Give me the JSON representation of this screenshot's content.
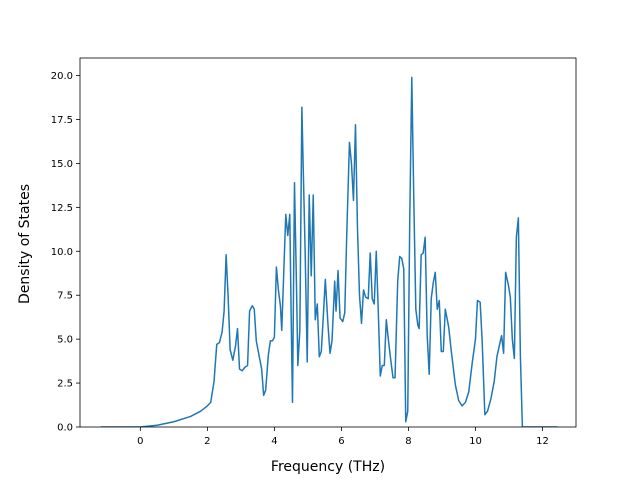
{
  "chart_data": {
    "type": "line",
    "xlabel": "Frequency (THz)",
    "ylabel": "Density of States",
    "xlim": [
      -1.8,
      13.0
    ],
    "ylim": [
      0,
      21.0
    ],
    "xticks": [
      0,
      2,
      4,
      6,
      8,
      10,
      12
    ],
    "xtick_labels": [
      "0",
      "2",
      "4",
      "6",
      "8",
      "10",
      "12"
    ],
    "yticks": [
      0,
      2.5,
      5,
      7.5,
      10,
      12.5,
      15,
      17.5,
      20
    ],
    "ytick_labels": [
      "0.0",
      "2.5",
      "5.0",
      "7.5",
      "10.0",
      "12.5",
      "15.0",
      "17.5",
      "20.0"
    ],
    "grid": false,
    "legend": false,
    "series": [
      {
        "color": "#1f77b4",
        "points": [
          [
            -1.18,
            0.0
          ],
          [
            0.0,
            0.0
          ],
          [
            0.5,
            0.1
          ],
          [
            1.0,
            0.3
          ],
          [
            1.5,
            0.6
          ],
          [
            1.8,
            0.9
          ],
          [
            2.0,
            1.2
          ],
          [
            2.1,
            1.4
          ],
          [
            2.2,
            2.6
          ],
          [
            2.28,
            4.7
          ],
          [
            2.36,
            4.8
          ],
          [
            2.44,
            5.4
          ],
          [
            2.5,
            6.6
          ],
          [
            2.56,
            9.8
          ],
          [
            2.62,
            7.4
          ],
          [
            2.68,
            4.4
          ],
          [
            2.76,
            3.8
          ],
          [
            2.84,
            4.6
          ],
          [
            2.9,
            5.6
          ],
          [
            2.96,
            3.3
          ],
          [
            3.04,
            3.2
          ],
          [
            3.12,
            3.4
          ],
          [
            3.2,
            3.5
          ],
          [
            3.26,
            6.6
          ],
          [
            3.34,
            6.9
          ],
          [
            3.4,
            6.7
          ],
          [
            3.46,
            4.9
          ],
          [
            3.54,
            4.1
          ],
          [
            3.62,
            3.3
          ],
          [
            3.68,
            1.8
          ],
          [
            3.74,
            2.1
          ],
          [
            3.82,
            4.1
          ],
          [
            3.88,
            4.9
          ],
          [
            3.94,
            4.9
          ],
          [
            4.0,
            5.1
          ],
          [
            4.06,
            9.1
          ],
          [
            4.12,
            7.8
          ],
          [
            4.18,
            6.9
          ],
          [
            4.22,
            5.5
          ],
          [
            4.28,
            8.8
          ],
          [
            4.34,
            12.1
          ],
          [
            4.4,
            10.9
          ],
          [
            4.46,
            12.1
          ],
          [
            4.5,
            6.4
          ],
          [
            4.54,
            1.4
          ],
          [
            4.6,
            13.9
          ],
          [
            4.66,
            8.0
          ],
          [
            4.7,
            3.5
          ],
          [
            4.76,
            5.5
          ],
          [
            4.82,
            18.2
          ],
          [
            4.86,
            14.8
          ],
          [
            4.92,
            9.8
          ],
          [
            4.98,
            3.7
          ],
          [
            5.04,
            13.2
          ],
          [
            5.1,
            8.6
          ],
          [
            5.16,
            13.2
          ],
          [
            5.22,
            6.1
          ],
          [
            5.28,
            7.0
          ],
          [
            5.34,
            4.0
          ],
          [
            5.4,
            4.3
          ],
          [
            5.46,
            6.3
          ],
          [
            5.52,
            8.4
          ],
          [
            5.6,
            5.8
          ],
          [
            5.66,
            4.2
          ],
          [
            5.72,
            4.9
          ],
          [
            5.8,
            8.3
          ],
          [
            5.84,
            6.6
          ],
          [
            5.9,
            8.9
          ],
          [
            5.96,
            6.2
          ],
          [
            6.04,
            6.0
          ],
          [
            6.1,
            6.5
          ],
          [
            6.16,
            11.0
          ],
          [
            6.24,
            16.2
          ],
          [
            6.3,
            15.0
          ],
          [
            6.36,
            12.9
          ],
          [
            6.42,
            17.2
          ],
          [
            6.48,
            11.3
          ],
          [
            6.54,
            7.5
          ],
          [
            6.6,
            5.9
          ],
          [
            6.66,
            7.8
          ],
          [
            6.72,
            7.4
          ],
          [
            6.8,
            7.3
          ],
          [
            6.86,
            9.9
          ],
          [
            6.92,
            7.3
          ],
          [
            6.98,
            7.0
          ],
          [
            7.04,
            10.0
          ],
          [
            7.1,
            6.6
          ],
          [
            7.16,
            2.9
          ],
          [
            7.22,
            3.5
          ],
          [
            7.28,
            3.5
          ],
          [
            7.34,
            6.1
          ],
          [
            7.4,
            5.0
          ],
          [
            7.46,
            4.0
          ],
          [
            7.54,
            2.8
          ],
          [
            7.6,
            2.8
          ],
          [
            7.68,
            8.3
          ],
          [
            7.74,
            9.7
          ],
          [
            7.8,
            9.6
          ],
          [
            7.86,
            9.0
          ],
          [
            7.92,
            0.3
          ],
          [
            7.98,
            0.9
          ],
          [
            8.04,
            11.9
          ],
          [
            8.1,
            19.9
          ],
          [
            8.16,
            13.0
          ],
          [
            8.22,
            6.7
          ],
          [
            8.28,
            5.8
          ],
          [
            8.32,
            5.6
          ],
          [
            8.38,
            9.8
          ],
          [
            8.44,
            9.9
          ],
          [
            8.5,
            10.8
          ],
          [
            8.56,
            5.2
          ],
          [
            8.62,
            3.0
          ],
          [
            8.68,
            7.3
          ],
          [
            8.74,
            8.2
          ],
          [
            8.8,
            8.8
          ],
          [
            8.86,
            6.7
          ],
          [
            8.92,
            7.2
          ],
          [
            8.98,
            4.3
          ],
          [
            9.04,
            4.3
          ],
          [
            9.1,
            6.7
          ],
          [
            9.2,
            5.7
          ],
          [
            9.28,
            4.3
          ],
          [
            9.4,
            2.4
          ],
          [
            9.5,
            1.5
          ],
          [
            9.6,
            1.2
          ],
          [
            9.7,
            1.4
          ],
          [
            9.8,
            2.0
          ],
          [
            9.9,
            3.6
          ],
          [
            10.0,
            5.0
          ],
          [
            10.06,
            7.2
          ],
          [
            10.14,
            7.1
          ],
          [
            10.2,
            4.9
          ],
          [
            10.28,
            0.7
          ],
          [
            10.36,
            0.9
          ],
          [
            10.46,
            1.6
          ],
          [
            10.56,
            2.6
          ],
          [
            10.64,
            4.0
          ],
          [
            10.72,
            4.7
          ],
          [
            10.78,
            5.2
          ],
          [
            10.84,
            4.2
          ],
          [
            10.9,
            8.8
          ],
          [
            10.98,
            8.1
          ],
          [
            11.04,
            7.4
          ],
          [
            11.1,
            5.0
          ],
          [
            11.16,
            3.9
          ],
          [
            11.22,
            10.8
          ],
          [
            11.28,
            11.9
          ],
          [
            11.34,
            4.1
          ],
          [
            11.4,
            0.0
          ],
          [
            12.45,
            0.0
          ]
        ]
      }
    ]
  }
}
